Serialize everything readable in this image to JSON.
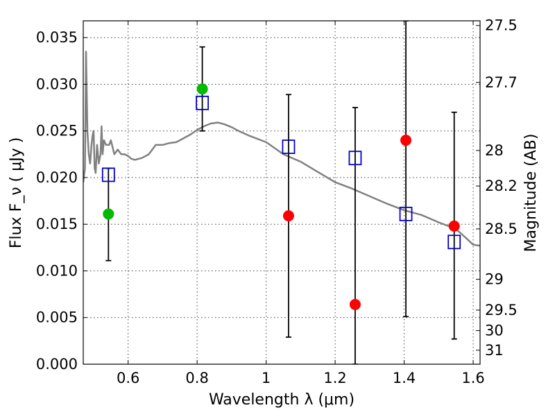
{
  "chart_data": {
    "type": "scatter",
    "title": "",
    "xlabel": "Wavelength  λ (μm)",
    "ylabel": "Flux  F_ν  ( μJy )",
    "y2label": "Magnitude (AB)",
    "xlim": [
      0.47,
      1.62
    ],
    "ylim": [
      0.0,
      0.0368
    ],
    "grid": true,
    "x_ticks": [
      0.6,
      0.8,
      1.0,
      1.2,
      1.4,
      1.6
    ],
    "x_tick_labels": [
      "0.6",
      "0.8",
      "1",
      "1.2",
      "1.4",
      "1.6"
    ],
    "y_ticks": [
      0.0,
      0.005,
      0.01,
      0.015,
      0.02,
      0.025,
      0.03,
      0.035
    ],
    "y_tick_labels": [
      "0.000",
      "0.005",
      "0.010",
      "0.015",
      "0.020",
      "0.025",
      "0.030",
      "0.035"
    ],
    "mag_ticks": [
      {
        "label": "27.5",
        "flux": 0.0363
      },
      {
        "label": "27.7",
        "flux": 0.0302
      },
      {
        "label": "28",
        "flux": 0.0229
      },
      {
        "label": "28.2",
        "flux": 0.0191
      },
      {
        "label": "28.5",
        "flux": 0.0145
      },
      {
        "label": "29",
        "flux": 0.0091
      },
      {
        "label": "29.5",
        "flux": 0.0058
      },
      {
        "label": "30",
        "flux": 0.0036
      },
      {
        "label": "31",
        "flux": 0.0015
      }
    ],
    "colors": {
      "model": "#808080",
      "green_points": "#00bb00",
      "red_points": "#ff0000",
      "squares": "#0000cc",
      "errorbars": "#000000"
    },
    "series": [
      {
        "marker": "line",
        "color": "#808080",
        "x": [
          0.47,
          0.475,
          0.478,
          0.482,
          0.486,
          0.49,
          0.494,
          0.497,
          0.5,
          0.503,
          0.506,
          0.51,
          0.515,
          0.52,
          0.523,
          0.526,
          0.53,
          0.536,
          0.54,
          0.545,
          0.55,
          0.56,
          0.57,
          0.58,
          0.59,
          0.6,
          0.61,
          0.62,
          0.64,
          0.66,
          0.68,
          0.7,
          0.72,
          0.74,
          0.76,
          0.78,
          0.8,
          0.82,
          0.84,
          0.86,
          0.88,
          0.9,
          0.92,
          0.95,
          1.0,
          1.05,
          1.1,
          1.15,
          1.2,
          1.25,
          1.3,
          1.35,
          1.4,
          1.45,
          1.5,
          1.55,
          1.58,
          1.6,
          1.62
        ],
        "y": [
          0.0195,
          0.021,
          0.0335,
          0.025,
          0.0225,
          0.0215,
          0.0235,
          0.0245,
          0.025,
          0.021,
          0.0205,
          0.0235,
          0.0215,
          0.0225,
          0.0255,
          0.0225,
          0.024,
          0.0235,
          0.0235,
          0.0235,
          0.024,
          0.0225,
          0.023,
          0.0225,
          0.0225,
          0.0223,
          0.022,
          0.0219,
          0.0221,
          0.0225,
          0.0235,
          0.0235,
          0.0237,
          0.0238,
          0.0242,
          0.0246,
          0.0251,
          0.0255,
          0.0258,
          0.0259,
          0.0257,
          0.0254,
          0.025,
          0.0245,
          0.0238,
          0.0225,
          0.0217,
          0.0206,
          0.0195,
          0.0188,
          0.018,
          0.0172,
          0.0165,
          0.016,
          0.0152,
          0.0145,
          0.0135,
          0.0128,
          0.0127
        ]
      },
      {
        "marker": "circle",
        "color": "#00bb00",
        "x": [
          0.543,
          0.815
        ],
        "y": [
          0.0161,
          0.0295
        ]
      },
      {
        "marker": "circle",
        "color": "#ff0000",
        "x": [
          1.065,
          1.258,
          1.405,
          1.545
        ],
        "y": [
          0.0159,
          0.0064,
          0.024,
          0.0148
        ]
      },
      {
        "marker": "square",
        "color": "#0000cc",
        "x": [
          0.543,
          0.815,
          1.065,
          1.258,
          1.405,
          1.545
        ],
        "y": [
          0.0203,
          0.028,
          0.0233,
          0.0221,
          0.0161,
          0.0131
        ]
      },
      {
        "marker": "errorbar",
        "color": "#000000",
        "x": [
          0.543,
          0.815,
          1.065,
          1.258,
          1.405,
          1.545
        ],
        "y_low": [
          0.0111,
          0.025,
          0.0029,
          0.0,
          0.0051,
          0.0027
        ],
        "y_high": [
          0.021,
          0.034,
          0.0289,
          0.0275,
          0.0368,
          0.027
        ]
      }
    ]
  }
}
